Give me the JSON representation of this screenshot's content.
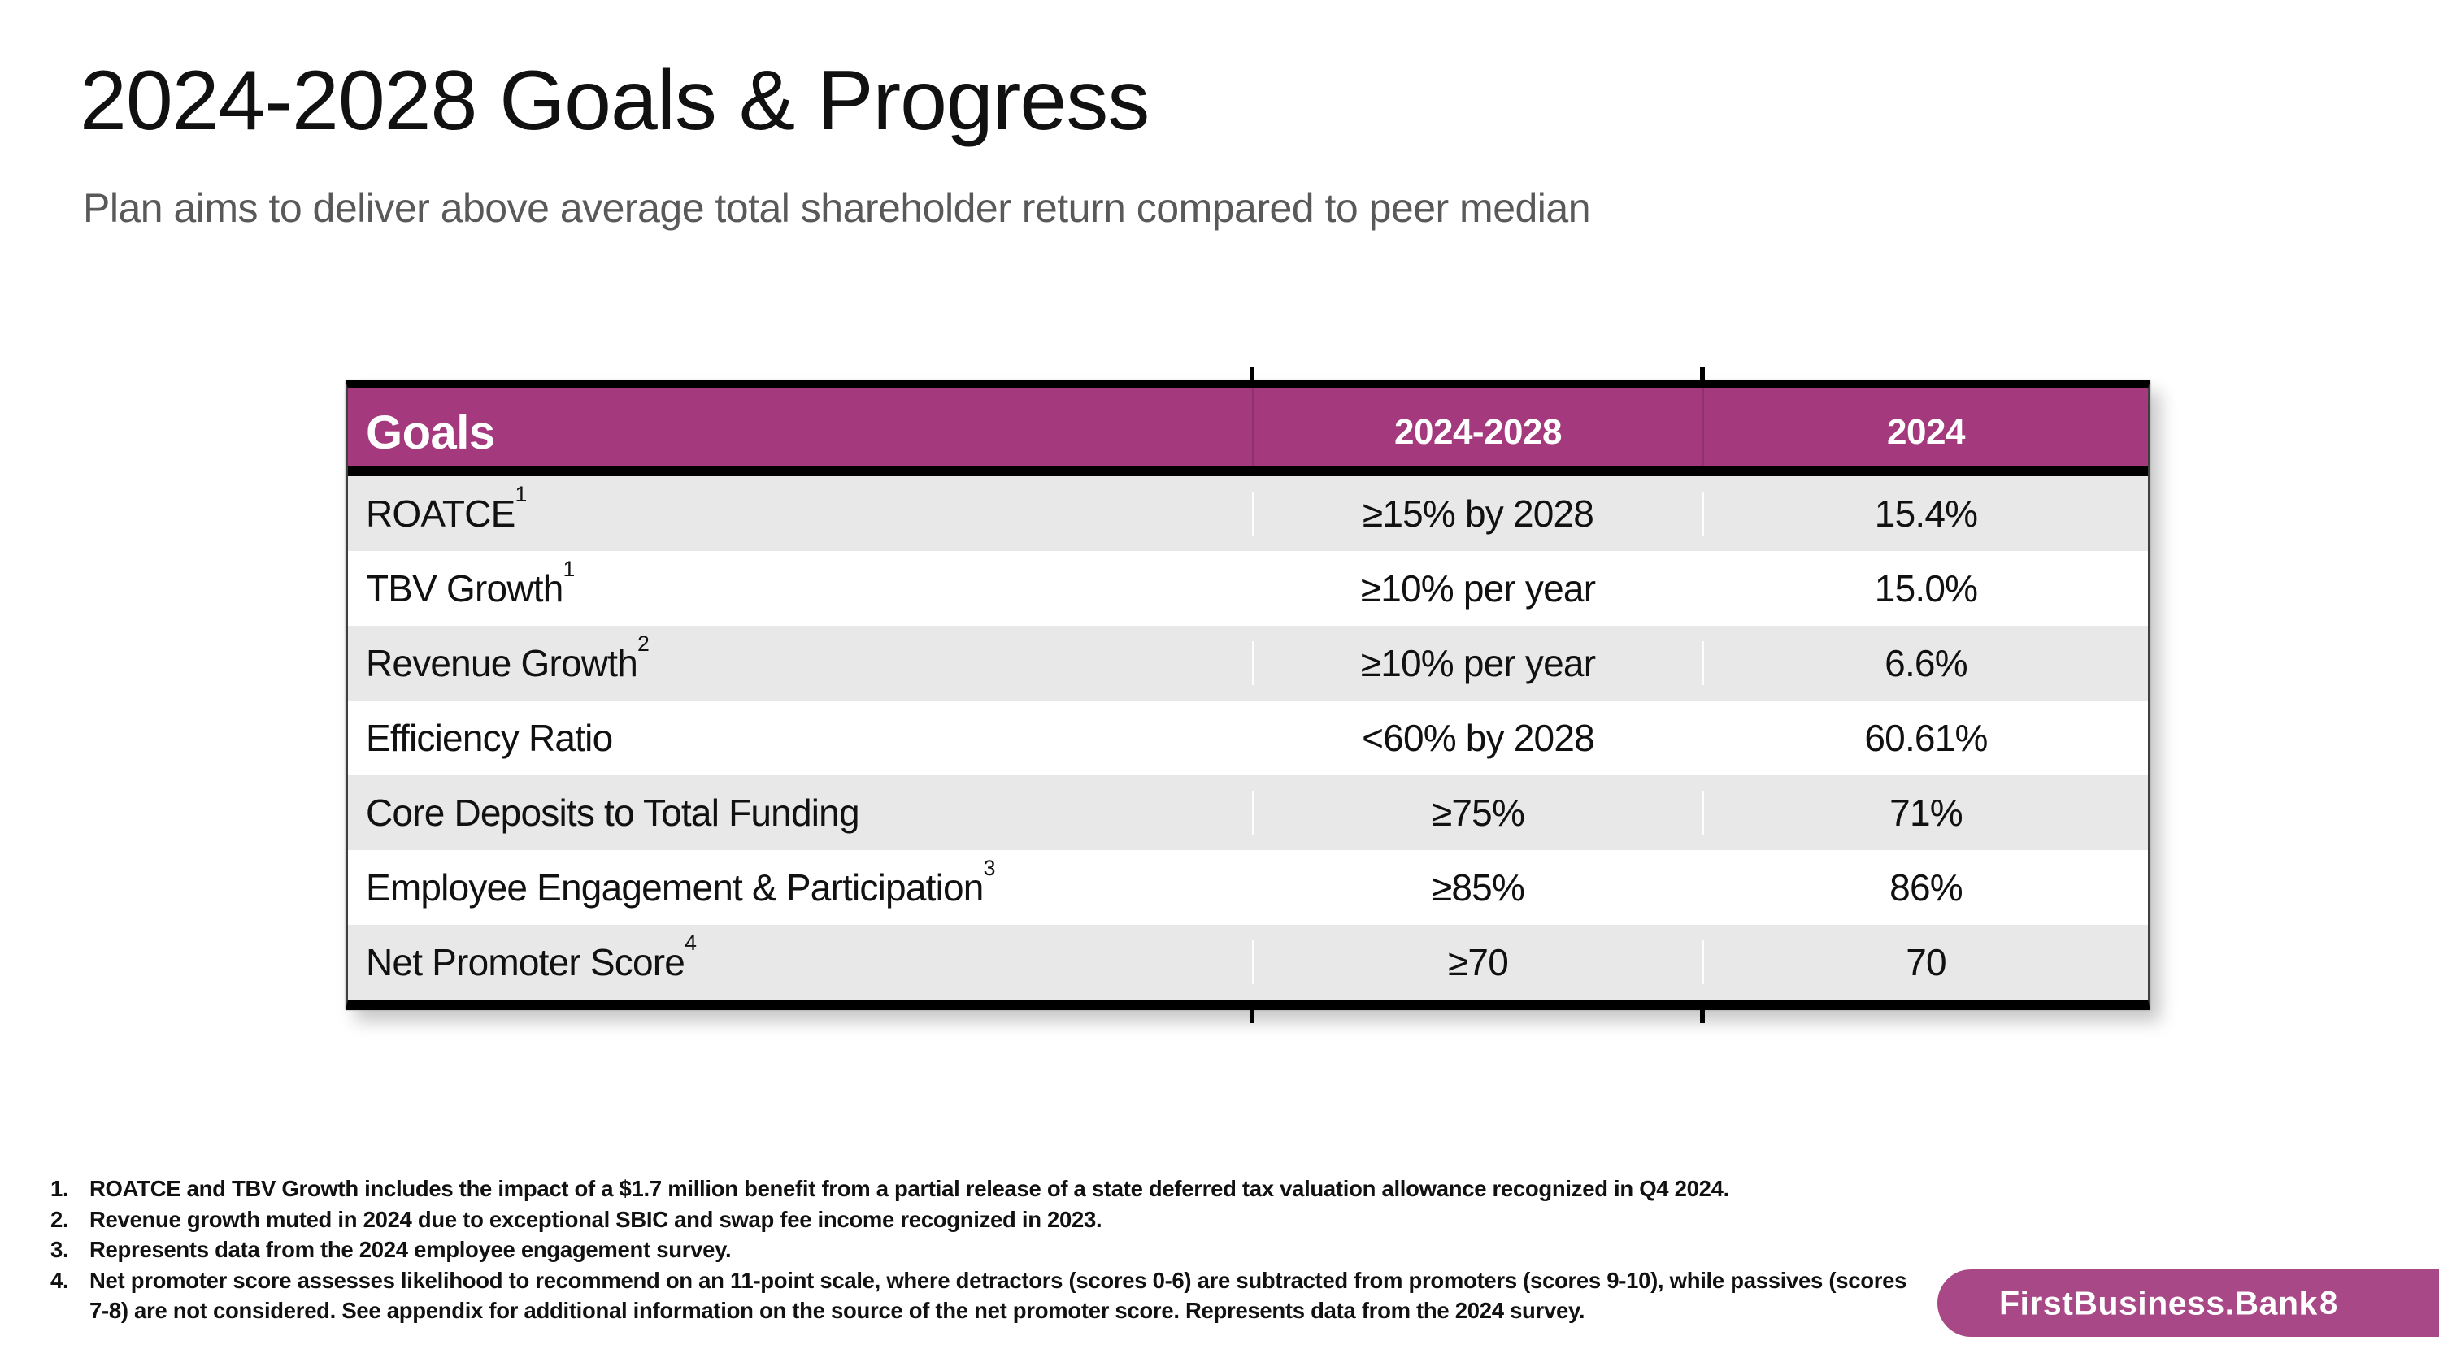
{
  "slide": {
    "title": "2024-2028 Goals & Progress",
    "subtitle": "Plan aims to deliver above average total shareholder return compared to peer median"
  },
  "table": {
    "columns": [
      "Goals",
      "2024-2028",
      "2024"
    ],
    "rows": [
      {
        "goal": "ROATCE",
        "sup": "1",
        "target": "≥15% by 2028",
        "actual": "15.4%"
      },
      {
        "goal": "TBV Growth",
        "sup": "1",
        "target": "≥10% per year",
        "actual": "15.0%"
      },
      {
        "goal": "Revenue Growth",
        "sup": "2",
        "target": "≥10% per year",
        "actual": "6.6%"
      },
      {
        "goal": "Efficiency Ratio",
        "sup": "",
        "target": "<60% by 2028",
        "actual": "60.61%"
      },
      {
        "goal": "Core Deposits to Total Funding",
        "sup": "",
        "target": "≥75%",
        "actual": "71%"
      },
      {
        "goal": "Employee Engagement & Participation",
        "sup": "3",
        "target": "≥85%",
        "actual": "86%"
      },
      {
        "goal": "Net Promoter Score",
        "sup": "4",
        "target": "≥70",
        "actual": "70"
      }
    ]
  },
  "footnotes": [
    {
      "num": "1.",
      "text": "ROATCE and TBV Growth includes the impact of a $1.7 million benefit from a partial release of a state deferred tax valuation allowance recognized in Q4 2024."
    },
    {
      "num": "2.",
      "text": "Revenue growth muted in 2024 due to exceptional SBIC and swap fee income recognized in 2023."
    },
    {
      "num": "3.",
      "text": "Represents data from the 2024 employee engagement survey."
    },
    {
      "num": "4.",
      "text": "Net promoter score assesses likelihood to recommend on an 11-point scale, where detractors (scores 0-6) are subtracted from promoters (scores 9-10), while passives (scores 7-8) are not considered. See appendix for additional information on the source of the net promoter score. Represents data from the 2024 survey."
    }
  ],
  "footer": {
    "brand": "FirstBusiness.Bank",
    "page": "8"
  },
  "colors": {
    "brand_magenta": "#A4397E",
    "badge_magenta": "#A84886",
    "row_gray": "#E8E8E8",
    "subtitle_gray": "#595959"
  }
}
